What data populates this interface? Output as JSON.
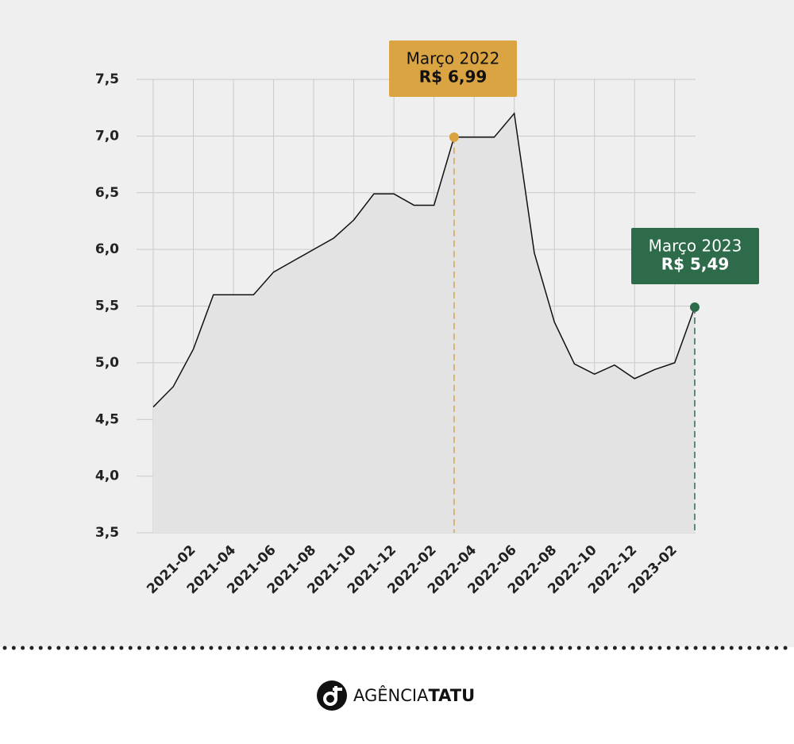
{
  "chart_data": {
    "type": "line",
    "categories": [
      null,
      null,
      "2021-02",
      null,
      "2021-04",
      null,
      "2021-06",
      null,
      "2021-08",
      null,
      "2021-10",
      null,
      "2021-12",
      null,
      "2022-02",
      null,
      "2022-04",
      null,
      "2022-06",
      null,
      "2022-08",
      null,
      "2022-10",
      null,
      "2022-12",
      null,
      "2023-02",
      null
    ],
    "values": [
      4.61,
      4.79,
      5.12,
      5.6,
      5.6,
      5.6,
      5.8,
      5.9,
      6.0,
      6.1,
      6.26,
      6.49,
      6.49,
      6.39,
      6.39,
      6.99,
      6.99,
      6.99,
      7.2,
      5.97,
      5.36,
      4.99,
      4.9,
      4.98,
      4.86,
      4.94,
      5.0,
      5.49
    ],
    "color": "#111111",
    "area_color": "#e3e3e3",
    "ylim": [
      3.5,
      7.5
    ],
    "yticks": [
      {
        "value": 3.5,
        "label": "3,5"
      },
      {
        "value": 4,
        "label": "4,0"
      },
      {
        "value": 4.5,
        "label": "4,5"
      },
      {
        "value": 5,
        "label": "5,0"
      },
      {
        "value": 5.5,
        "label": "5,5"
      },
      {
        "value": 6,
        "label": "6,0"
      },
      {
        "value": 6.5,
        "label": "6,5"
      },
      {
        "value": 7,
        "label": "7,0"
      },
      {
        "value": 7.5,
        "label": "7,5"
      }
    ],
    "grid": true,
    "annotations": [
      {
        "title": "Março 2022",
        "text": "R$ 6,99",
        "color": "#d9a441"
      },
      {
        "title": "Março 2023",
        "text": "R$ 5,49",
        "color": "#2e6b4a"
      }
    ]
  },
  "footer": {
    "brand_light": "AGÊNCIA",
    "brand_bold": "TATU"
  }
}
